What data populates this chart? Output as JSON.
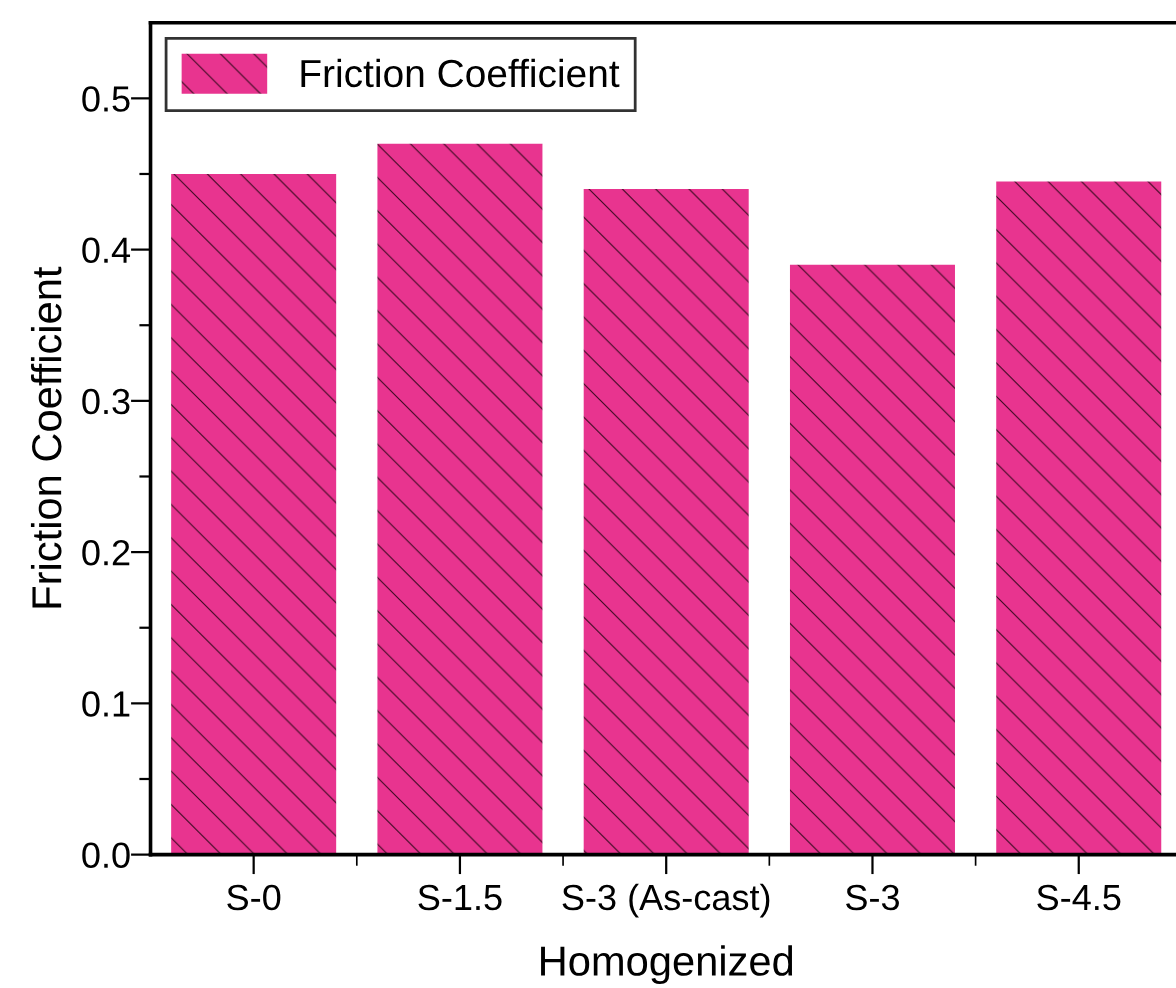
{
  "chart_data": {
    "type": "bar",
    "xlabel": "Homogenized",
    "ylabel": "Friction Coefficient",
    "categories": [
      "S-0",
      "S-1.5",
      "S-3 (As-cast)",
      "S-3",
      "S-4.5"
    ],
    "series": [
      {
        "name": "Friction Coefficient",
        "color": "#e8348f",
        "values": [
          0.45,
          0.47,
          0.44,
          0.39,
          0.445
        ]
      }
    ],
    "ylim": [
      0,
      0.55
    ],
    "yticks": [
      {
        "value": 0,
        "label": "0.0"
      },
      {
        "value": 0.05,
        "label": null
      },
      0.1,
      {
        "value": 0.15,
        "label": null
      },
      0.2,
      {
        "value": 0.25,
        "label": null
      },
      0.3,
      {
        "value": 0.35,
        "label": null
      },
      0.4,
      {
        "value": 0.45,
        "label": null
      },
      0.5
    ],
    "legend": "top left",
    "grid": false
  }
}
